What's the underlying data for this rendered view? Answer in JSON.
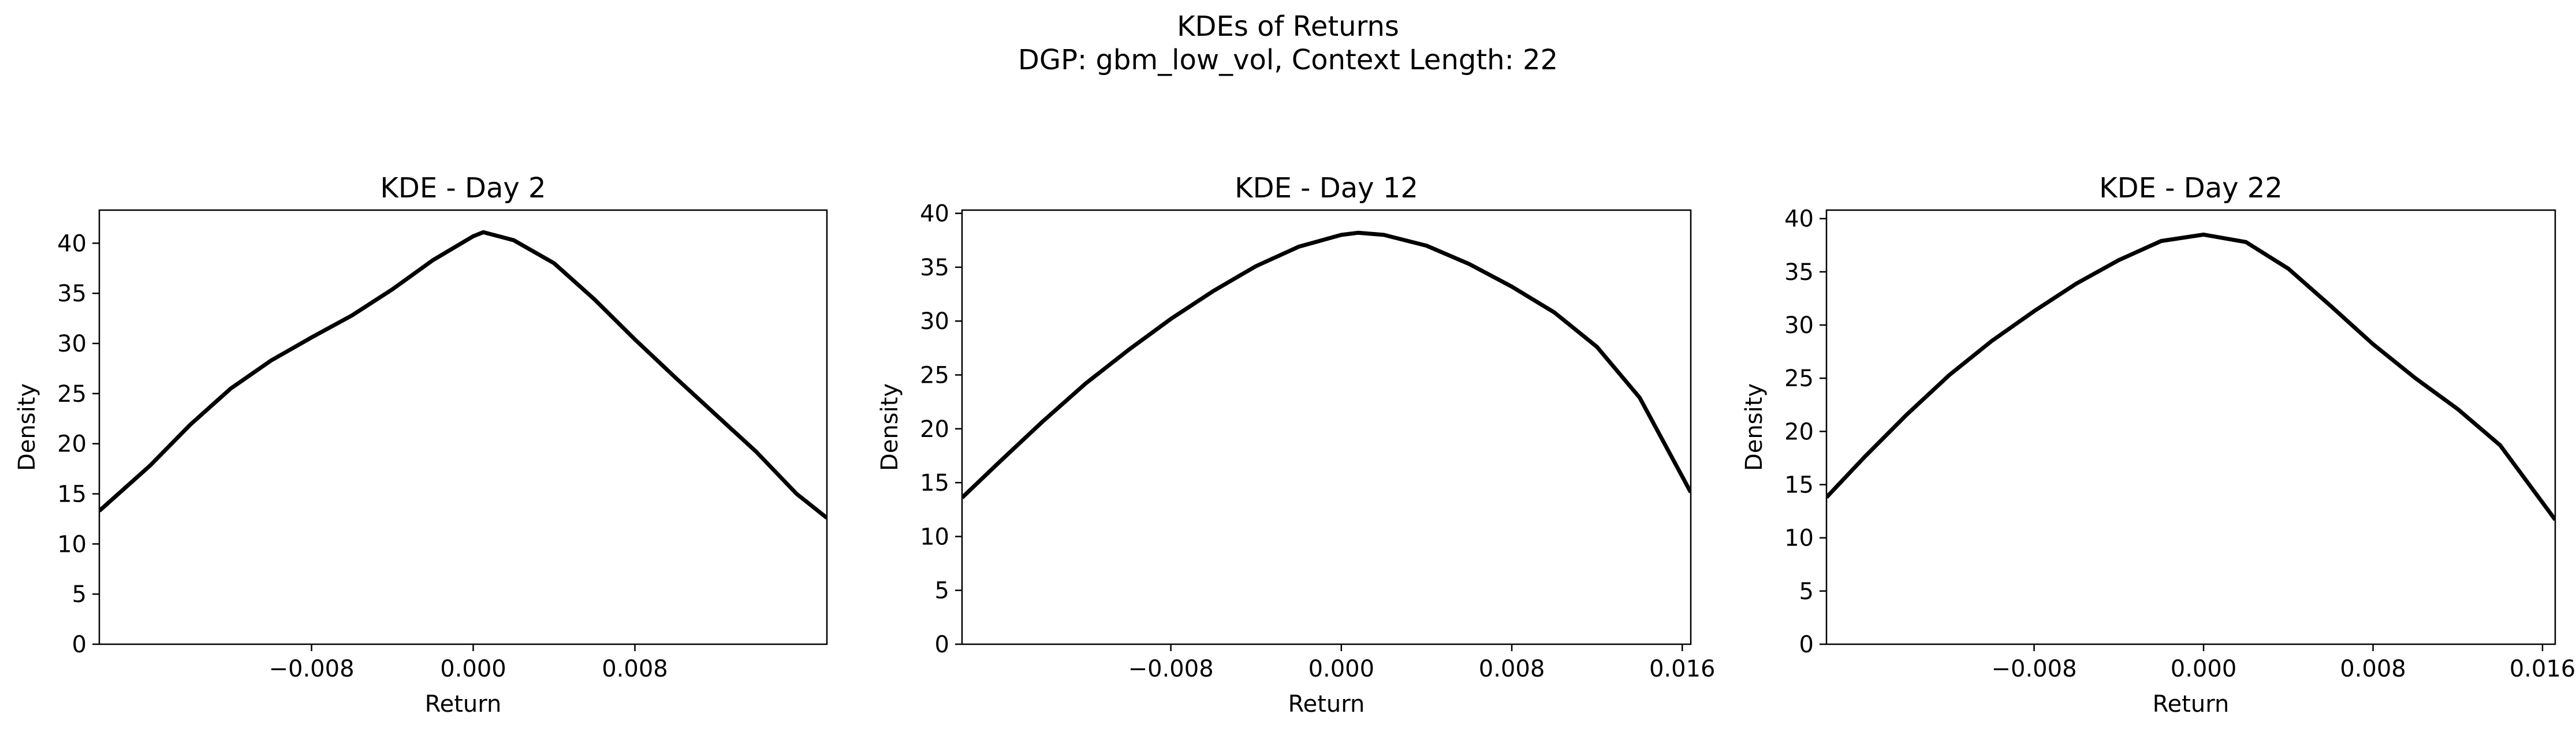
{
  "figure": {
    "title_line1": "KDEs of Returns",
    "title_line2": "DGP: gbm_low_vol, Context Length: 22",
    "background": "#ffffff",
    "line_color": "#000000"
  },
  "chart_data": [
    {
      "type": "line",
      "title": "KDE - Day 2",
      "xlabel": "Return",
      "ylabel": "Density",
      "xlim": [
        -0.0185,
        0.0175
      ],
      "ylim": [
        0,
        43.3
      ],
      "xticks": [
        -0.008,
        0.0,
        0.008
      ],
      "xtick_labels": [
        "−0.008",
        "0.000",
        "0.008"
      ],
      "yticks": [
        0,
        5,
        10,
        15,
        20,
        25,
        30,
        35,
        40
      ],
      "ytick_labels": [
        "0",
        "5",
        "10",
        "15",
        "20",
        "25",
        "30",
        "35",
        "40"
      ],
      "grid": false,
      "series": [
        {
          "x": [
            -0.0185,
            -0.016,
            -0.014,
            -0.012,
            -0.01,
            -0.008,
            -0.006,
            -0.004,
            -0.002,
            0.0,
            0.0005,
            0.002,
            0.004,
            0.006,
            0.008,
            0.01,
            0.012,
            0.014,
            0.016,
            0.0175
          ],
          "y": [
            13.3,
            17.8,
            21.9,
            25.5,
            28.3,
            30.6,
            32.8,
            35.4,
            38.3,
            40.7,
            41.1,
            40.3,
            38.0,
            34.4,
            30.4,
            26.6,
            22.9,
            19.2,
            15.0,
            12.6
          ]
        }
      ]
    },
    {
      "type": "line",
      "title": "KDE - Day 12",
      "xlabel": "Return",
      "ylabel": "Density",
      "xlim": [
        -0.0178,
        0.0164
      ],
      "ylim": [
        0,
        40.3
      ],
      "xticks": [
        -0.008,
        0.0,
        0.008,
        0.016
      ],
      "xtick_labels": [
        "−0.008",
        "0.000",
        "0.008",
        "0.016"
      ],
      "yticks": [
        0,
        5,
        10,
        15,
        20,
        25,
        30,
        35,
        40
      ],
      "ytick_labels": [
        "0",
        "5",
        "10",
        "15",
        "20",
        "25",
        "30",
        "35",
        "40"
      ],
      "grid": false,
      "series": [
        {
          "x": [
            -0.0178,
            -0.016,
            -0.014,
            -0.012,
            -0.01,
            -0.008,
            -0.006,
            -0.004,
            -0.002,
            0.0,
            0.0008,
            0.002,
            0.004,
            0.006,
            0.008,
            0.01,
            0.012,
            0.014,
            0.0164
          ],
          "y": [
            13.6,
            17.0,
            20.7,
            24.2,
            27.3,
            30.2,
            32.8,
            35.1,
            36.9,
            38.0,
            38.2,
            38.0,
            37.0,
            35.3,
            33.2,
            30.8,
            27.6,
            22.9,
            14.1
          ]
        }
      ]
    },
    {
      "type": "line",
      "title": "KDE - Day 22",
      "xlabel": "Return",
      "ylabel": "Density",
      "xlim": [
        -0.0178,
        0.0166
      ],
      "ylim": [
        0,
        40.8
      ],
      "xticks": [
        -0.008,
        0.0,
        0.008,
        0.016
      ],
      "xtick_labels": [
        "−0.008",
        "0.000",
        "0.008",
        "0.016"
      ],
      "yticks": [
        0,
        5,
        10,
        15,
        20,
        25,
        30,
        35,
        40
      ],
      "ytick_labels": [
        "0",
        "5",
        "10",
        "15",
        "20",
        "25",
        "30",
        "35",
        "40"
      ],
      "grid": false,
      "series": [
        {
          "x": [
            -0.0178,
            -0.016,
            -0.014,
            -0.012,
            -0.01,
            -0.008,
            -0.006,
            -0.004,
            -0.002,
            0.0,
            0.002,
            0.004,
            0.006,
            0.008,
            0.01,
            0.012,
            0.014,
            0.0166
          ],
          "y": [
            13.8,
            17.6,
            21.6,
            25.3,
            28.5,
            31.3,
            33.9,
            36.1,
            37.9,
            38.5,
            37.8,
            35.3,
            31.8,
            28.2,
            25.0,
            22.1,
            18.7,
            11.7
          ]
        }
      ]
    }
  ]
}
